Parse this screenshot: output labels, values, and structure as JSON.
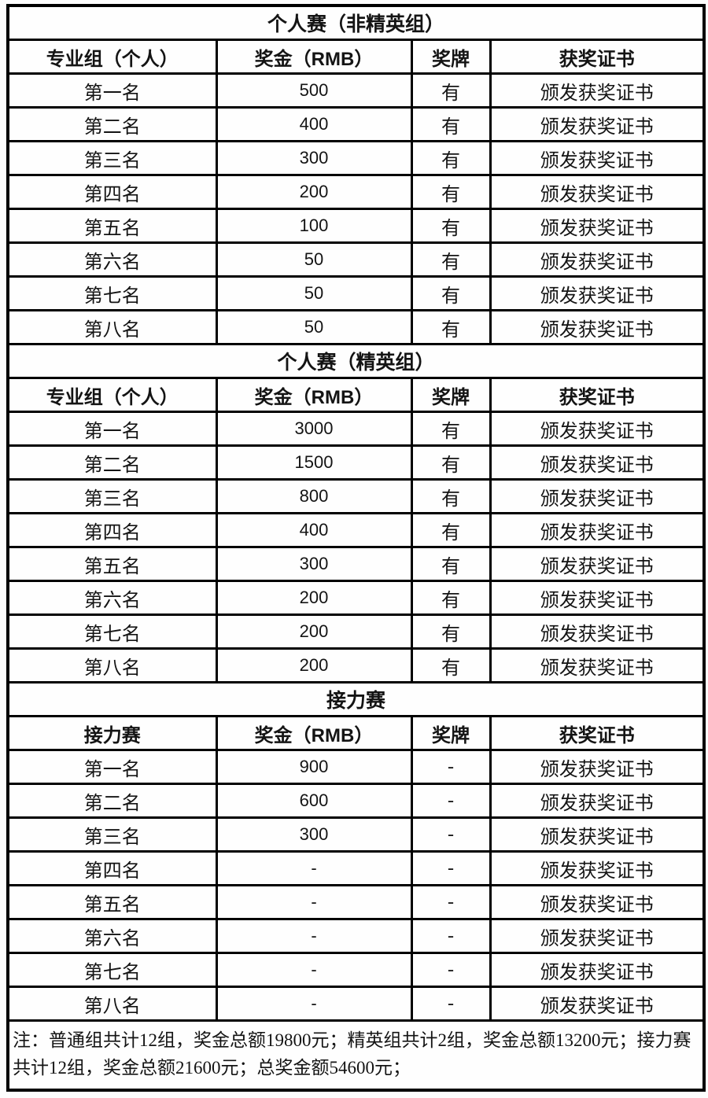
{
  "table": {
    "sections": [
      {
        "title": "个人赛（非精英组）",
        "headers": [
          "专业组（个人）",
          "奖金（RMB）",
          "奖牌",
          "获奖证书"
        ],
        "rows": [
          [
            "第一名",
            "500",
            "有",
            "颁发获奖证书"
          ],
          [
            "第二名",
            "400",
            "有",
            "颁发获奖证书"
          ],
          [
            "第三名",
            "300",
            "有",
            "颁发获奖证书"
          ],
          [
            "第四名",
            "200",
            "有",
            "颁发获奖证书"
          ],
          [
            "第五名",
            "100",
            "有",
            "颁发获奖证书"
          ],
          [
            "第六名",
            "50",
            "有",
            "颁发获奖证书"
          ],
          [
            "第七名",
            "50",
            "有",
            "颁发获奖证书"
          ],
          [
            "第八名",
            "50",
            "有",
            "颁发获奖证书"
          ]
        ]
      },
      {
        "title": "个人赛（精英组）",
        "headers": [
          "专业组（个人）",
          "奖金（RMB）",
          "奖牌",
          "获奖证书"
        ],
        "rows": [
          [
            "第一名",
            "3000",
            "有",
            "颁发获奖证书"
          ],
          [
            "第二名",
            "1500",
            "有",
            "颁发获奖证书"
          ],
          [
            "第三名",
            "800",
            "有",
            "颁发获奖证书"
          ],
          [
            "第四名",
            "400",
            "有",
            "颁发获奖证书"
          ],
          [
            "第五名",
            "300",
            "有",
            "颁发获奖证书"
          ],
          [
            "第六名",
            "200",
            "有",
            "颁发获奖证书"
          ],
          [
            "第七名",
            "200",
            "有",
            "颁发获奖证书"
          ],
          [
            "第八名",
            "200",
            "有",
            "颁发获奖证书"
          ]
        ]
      },
      {
        "title": "接力赛",
        "headers": [
          "接力赛",
          "奖金（RMB）",
          "奖牌",
          "获奖证书"
        ],
        "rows": [
          [
            "第一名",
            "900",
            "-",
            "颁发获奖证书"
          ],
          [
            "第二名",
            "600",
            "-",
            "颁发获奖证书"
          ],
          [
            "第三名",
            "300",
            "-",
            "颁发获奖证书"
          ],
          [
            "第四名",
            "-",
            "-",
            "颁发获奖证书"
          ],
          [
            "第五名",
            "-",
            "-",
            "颁发获奖证书"
          ],
          [
            "第六名",
            "-",
            "-",
            "颁发获奖证书"
          ],
          [
            "第七名",
            "-",
            "-",
            "颁发获奖证书"
          ],
          [
            "第八名",
            "-",
            "-",
            "颁发获奖证书"
          ]
        ]
      }
    ],
    "note": "注：普通组共计12组，奖金总额19800元；精英组共计2组，奖金总额13200元；接力赛共计12组，奖金总额21600元；总奖金额54600元；",
    "colors": {
      "border": "#000000",
      "text": "#141414",
      "background": "#fefefe"
    }
  }
}
